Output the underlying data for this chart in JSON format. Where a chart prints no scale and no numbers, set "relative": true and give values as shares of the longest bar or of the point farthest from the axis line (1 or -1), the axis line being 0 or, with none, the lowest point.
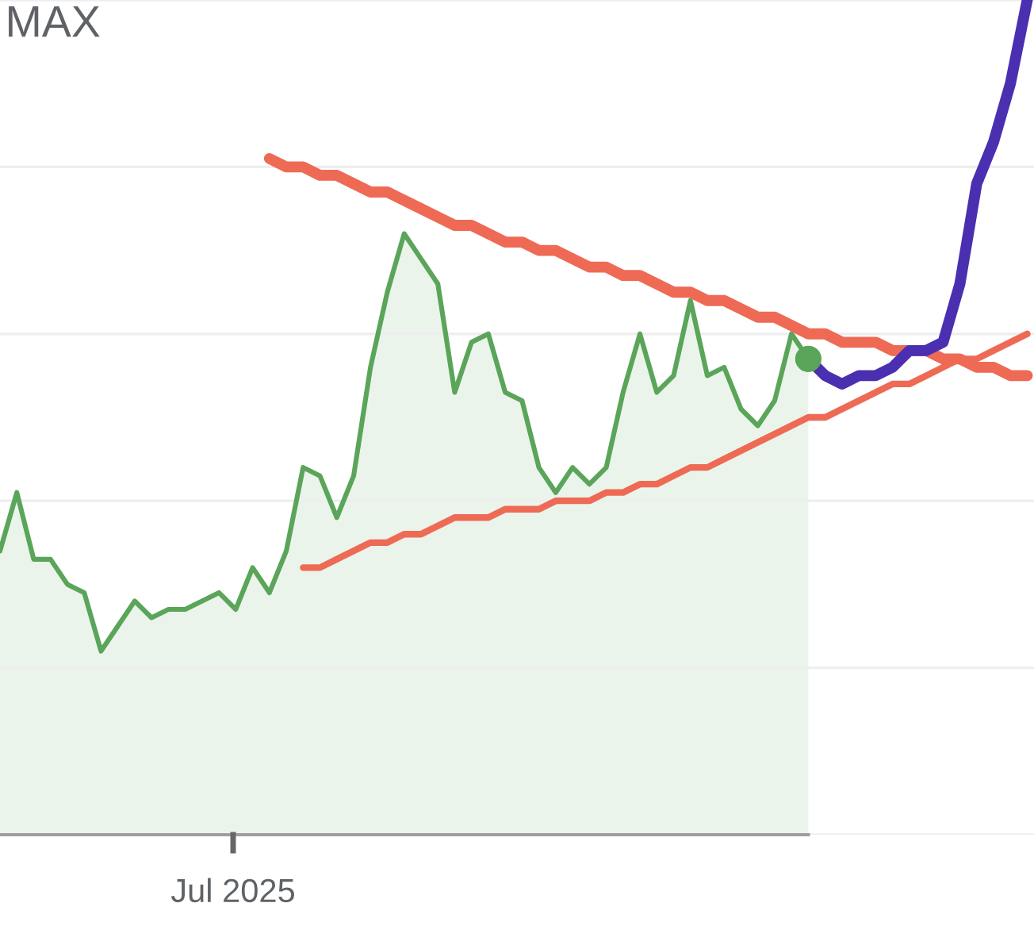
{
  "chart_data": {
    "type": "line",
    "relative": true,
    "grid": "y",
    "annotations": [
      "MAX",
      "Jul 2025"
    ],
    "categories": [
      null,
      null,
      null,
      null,
      null,
      null,
      null,
      null,
      null,
      null,
      null,
      null,
      null,
      null,
      null,
      null,
      null,
      null,
      null,
      null,
      null,
      null,
      null,
      null,
      null,
      null,
      null,
      null,
      null,
      null,
      null,
      null,
      null,
      null,
      null,
      null,
      null,
      null,
      null,
      null,
      null,
      null,
      null,
      null,
      null,
      null,
      null,
      null,
      null,
      null,
      null,
      null,
      null,
      null,
      null,
      null,
      null,
      null,
      null,
      null,
      null,
      null
    ],
    "series": [
      {
        "color": "#5aa55a",
        "values": [
          0.34,
          0.41,
          0.33,
          0.33,
          0.3,
          0.29,
          0.22,
          0.25,
          0.28,
          0.26,
          0.27,
          0.27,
          0.28,
          0.29,
          0.27,
          0.32,
          0.29,
          0.34,
          0.44,
          0.43,
          0.38,
          0.43,
          0.56,
          0.65,
          0.72,
          0.69,
          0.66,
          0.53,
          0.59,
          0.6,
          0.53,
          0.52,
          0.44,
          0.41,
          0.44,
          0.42,
          0.44,
          0.53,
          0.6,
          0.53,
          0.55,
          0.64,
          0.55,
          0.56,
          0.51,
          0.49,
          0.52,
          0.6,
          0.57,
          null,
          null,
          null,
          null,
          null,
          null,
          null,
          null,
          null,
          null,
          null,
          null,
          null
        ]
      },
      {
        "color": "#ee6a55",
        "values": [
          null,
          null,
          null,
          null,
          null,
          null,
          null,
          null,
          null,
          null,
          null,
          null,
          null,
          null,
          null,
          null,
          0.81,
          0.8,
          0.8,
          0.79,
          0.79,
          0.78,
          0.77,
          0.77,
          0.76,
          0.75,
          0.74,
          0.73,
          0.73,
          0.72,
          0.71,
          0.71,
          0.7,
          0.7,
          0.69,
          0.68,
          0.68,
          0.67,
          0.67,
          0.66,
          0.65,
          0.65,
          0.64,
          0.64,
          0.63,
          0.62,
          0.62,
          0.61,
          0.6,
          0.6,
          0.59,
          0.59,
          0.59,
          0.58,
          0.58,
          0.58,
          0.57,
          0.57,
          0.56,
          0.56,
          0.55,
          0.55
        ]
      },
      {
        "color": "#ee6a55",
        "values": [
          null,
          null,
          null,
          null,
          null,
          null,
          null,
          null,
          null,
          null,
          null,
          null,
          null,
          null,
          null,
          null,
          null,
          null,
          0.32,
          0.32,
          0.33,
          0.34,
          0.35,
          0.35,
          0.36,
          0.36,
          0.37,
          0.38,
          0.38,
          0.38,
          0.39,
          0.39,
          0.39,
          0.4,
          0.4,
          0.4,
          0.41,
          0.41,
          0.42,
          0.42,
          0.43,
          0.44,
          0.44,
          0.45,
          0.46,
          0.47,
          0.48,
          0.49,
          0.5,
          0.5,
          0.51,
          0.52,
          0.53,
          0.54,
          0.54,
          0.55,
          0.56,
          0.57,
          0.57,
          0.58,
          0.59,
          0.6
        ]
      },
      {
        "color": "#4a2fb0",
        "values": [
          null,
          null,
          null,
          null,
          null,
          null,
          null,
          null,
          null,
          null,
          null,
          null,
          null,
          null,
          null,
          null,
          null,
          null,
          null,
          null,
          null,
          null,
          null,
          null,
          null,
          null,
          null,
          null,
          null,
          null,
          null,
          null,
          null,
          null,
          null,
          null,
          null,
          null,
          null,
          null,
          null,
          null,
          null,
          null,
          null,
          null,
          null,
          null,
          0.57,
          0.55,
          0.54,
          0.55,
          0.55,
          0.56,
          0.58,
          0.58,
          0.59,
          0.66,
          0.78,
          0.83,
          0.9,
          1.0
        ]
      }
    ]
  }
}
